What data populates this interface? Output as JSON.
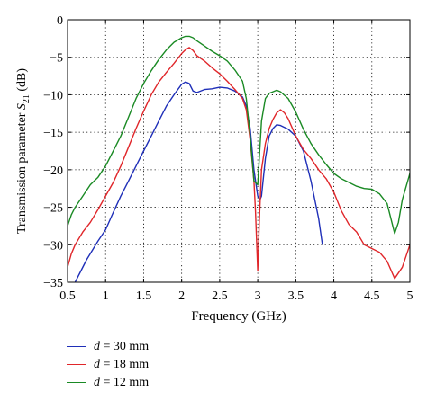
{
  "chart_data": {
    "type": "line",
    "xlabel": "Frequency (GHz)",
    "ylabel": "Transmission parameter",
    "ylabel_symbol": "S",
    "ylabel_subscript": "21",
    "ylabel_unit": "(dB)",
    "xlim": [
      0.5,
      5
    ],
    "ylim": [
      -35,
      0
    ],
    "xticks": [
      0.5,
      1,
      1.5,
      2,
      2.5,
      3,
      3.5,
      4,
      4.5,
      5
    ],
    "xtick_labels": [
      "0.5",
      "1",
      "1.5",
      "2",
      "2.5",
      "3",
      "3.5",
      "4",
      "4.5",
      "5"
    ],
    "yticks": [
      0,
      -5,
      -10,
      -15,
      -20,
      -25,
      -30,
      -35
    ],
    "ytick_labels": [
      "0",
      "−5",
      "−10",
      "−15",
      "−20",
      "−25",
      "−30",
      "−35"
    ],
    "grid": true,
    "legend_position": "below-left",
    "series": [
      {
        "name": "d = 30 mm",
        "legend_var": "d",
        "legend_rest": " = 30 mm",
        "color": "#1f2fb8",
        "x": [
          0.6,
          0.75,
          0.9,
          1.0,
          1.1,
          1.2,
          1.3,
          1.4,
          1.5,
          1.6,
          1.7,
          1.8,
          1.9,
          2.0,
          2.05,
          2.1,
          2.15,
          2.2,
          2.3,
          2.4,
          2.5,
          2.6,
          2.7,
          2.8,
          2.85,
          2.9,
          2.95,
          3.0,
          3.03,
          3.05,
          3.1,
          3.15,
          3.2,
          3.25,
          3.3,
          3.4,
          3.5,
          3.6,
          3.7,
          3.8,
          3.85
        ],
        "y": [
          -35.0,
          -32.0,
          -29.5,
          -28.0,
          -25.7,
          -23.5,
          -21.5,
          -19.5,
          -17.5,
          -15.5,
          -13.5,
          -11.5,
          -10.0,
          -8.6,
          -8.3,
          -8.5,
          -9.5,
          -9.7,
          -9.3,
          -9.2,
          -9.0,
          -9.1,
          -9.5,
          -10.3,
          -11.5,
          -14.5,
          -20.0,
          -23.5,
          -24.0,
          -23.5,
          -18.5,
          -15.5,
          -14.5,
          -14.0,
          -14.1,
          -14.6,
          -15.5,
          -17.5,
          -21.5,
          -26.5,
          -30.0
        ]
      },
      {
        "name": "d = 18 mm",
        "legend_var": "d",
        "legend_rest": " = 18 mm",
        "color": "#e0262a",
        "x": [
          0.5,
          0.55,
          0.6,
          0.7,
          0.8,
          0.9,
          1.0,
          1.1,
          1.2,
          1.3,
          1.4,
          1.5,
          1.6,
          1.7,
          1.8,
          1.9,
          2.0,
          2.05,
          2.1,
          2.15,
          2.2,
          2.3,
          2.4,
          2.5,
          2.6,
          2.7,
          2.8,
          2.85,
          2.9,
          2.95,
          2.97,
          3.0,
          3.02,
          3.05,
          3.1,
          3.15,
          3.2,
          3.25,
          3.3,
          3.35,
          3.4,
          3.5,
          3.6,
          3.7,
          3.8,
          3.9,
          4.0,
          4.1,
          4.2,
          4.3,
          4.4,
          4.5,
          4.6,
          4.7,
          4.8,
          4.9,
          5.0
        ],
        "y": [
          -33.0,
          -31.2,
          -30.0,
          -28.3,
          -27.0,
          -25.3,
          -23.5,
          -21.7,
          -19.5,
          -17.0,
          -14.5,
          -12.2,
          -10.0,
          -8.3,
          -7.0,
          -5.8,
          -4.5,
          -4.0,
          -3.7,
          -4.1,
          -4.8,
          -5.5,
          -6.4,
          -7.2,
          -8.2,
          -9.3,
          -10.5,
          -12.0,
          -16.0,
          -21.5,
          -25.5,
          -33.5,
          -27.0,
          -20.0,
          -16.5,
          -14.5,
          -13.3,
          -12.4,
          -12.0,
          -12.4,
          -13.2,
          -15.5,
          -17.3,
          -18.5,
          -20.0,
          -21.2,
          -23.0,
          -25.5,
          -27.3,
          -28.3,
          -30.0,
          -30.5,
          -31.0,
          -32.2,
          -34.5,
          -33.0,
          -30.0
        ]
      },
      {
        "name": "d = 12 mm",
        "legend_var": "d",
        "legend_rest": " = 12 mm",
        "color": "#1a8a24",
        "x": [
          0.5,
          0.55,
          0.6,
          0.7,
          0.8,
          0.9,
          1.0,
          1.1,
          1.2,
          1.3,
          1.4,
          1.5,
          1.6,
          1.7,
          1.8,
          1.9,
          2.0,
          2.05,
          2.1,
          2.15,
          2.2,
          2.3,
          2.4,
          2.5,
          2.6,
          2.7,
          2.8,
          2.85,
          2.9,
          2.95,
          3.0,
          3.05,
          3.1,
          3.15,
          3.2,
          3.25,
          3.3,
          3.4,
          3.5,
          3.6,
          3.7,
          3.8,
          3.9,
          4.0,
          4.1,
          4.2,
          4.3,
          4.4,
          4.5,
          4.6,
          4.7,
          4.75,
          4.8,
          4.85,
          4.9,
          5.0
        ],
        "y": [
          -27.5,
          -26.0,
          -25.0,
          -23.5,
          -22.0,
          -21.0,
          -19.5,
          -17.5,
          -15.5,
          -13.0,
          -10.5,
          -8.5,
          -6.8,
          -5.3,
          -4.0,
          -3.0,
          -2.4,
          -2.2,
          -2.2,
          -2.4,
          -2.8,
          -3.5,
          -4.2,
          -4.8,
          -5.5,
          -6.7,
          -8.2,
          -10.5,
          -15.5,
          -21.5,
          -22.0,
          -13.5,
          -10.5,
          -9.8,
          -9.6,
          -9.4,
          -9.6,
          -10.5,
          -12.3,
          -14.6,
          -16.5,
          -18.0,
          -19.3,
          -20.5,
          -21.2,
          -21.7,
          -22.2,
          -22.5,
          -22.6,
          -23.2,
          -24.5,
          -26.5,
          -28.5,
          -27.0,
          -24.0,
          -20.5
        ]
      }
    ]
  }
}
